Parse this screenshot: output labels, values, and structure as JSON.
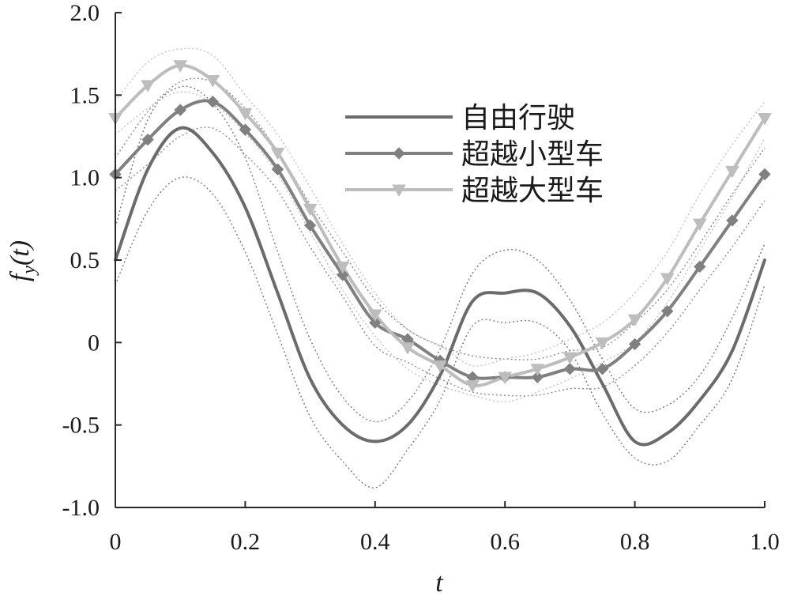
{
  "chart_data": {
    "type": "line",
    "title": "",
    "xlabel": "t",
    "ylabel": "f_y(t)",
    "ylabel_main": "f",
    "ylabel_sub": "y",
    "ylabel_arg": "(t)",
    "xlim": [
      0,
      1
    ],
    "ylim": [
      -1,
      2
    ],
    "x_ticks": [
      0,
      0.2,
      0.4,
      0.6,
      0.8,
      1.0
    ],
    "x_tick_labels": [
      "0",
      "0.2",
      "0.4",
      "0.6",
      "0.8",
      "1.0"
    ],
    "y_ticks": [
      -1,
      -0.5,
      0,
      0.5,
      1,
      1.5,
      2
    ],
    "y_tick_labels": [
      "-1.0",
      "-0.5",
      "0",
      "0.5",
      "1.0",
      "1.5",
      "2.0"
    ],
    "grid": false,
    "legend_position": "top-right",
    "x": [
      0,
      0.05,
      0.1,
      0.15,
      0.2,
      0.25,
      0.3,
      0.35,
      0.4,
      0.45,
      0.5,
      0.55,
      0.6,
      0.65,
      0.7,
      0.75,
      0.8,
      0.85,
      0.9,
      0.95,
      1.0
    ],
    "series": [
      {
        "name": "自由行驶",
        "color": "#6b6b6b",
        "marker": "none",
        "values": [
          0.5,
          1.05,
          1.3,
          1.15,
          0.82,
          0.3,
          -0.22,
          -0.5,
          -0.6,
          -0.5,
          -0.2,
          0.25,
          0.3,
          0.3,
          0.1,
          -0.25,
          -0.6,
          -0.55,
          -0.35,
          -0.05,
          0.5
        ],
        "band_upper": [
          0.7,
          1.35,
          1.55,
          1.45,
          1.12,
          0.55,
          0.02,
          -0.33,
          -0.48,
          -0.36,
          -0.04,
          0.42,
          0.56,
          0.5,
          0.26,
          -0.1,
          -0.4,
          -0.38,
          -0.2,
          0.15,
          0.6
        ],
        "band_lower": [
          0.35,
          0.8,
          1.0,
          0.9,
          0.55,
          0.05,
          -0.45,
          -0.72,
          -0.88,
          -0.65,
          -0.35,
          0.1,
          0.12,
          0.12,
          -0.05,
          -0.43,
          -0.7,
          -0.72,
          -0.5,
          -0.22,
          0.35
        ]
      },
      {
        "name": "超越小型车",
        "color": "#808080",
        "marker": "diamond",
        "values": [
          1.02,
          1.23,
          1.41,
          1.46,
          1.29,
          1.05,
          0.71,
          0.41,
          0.12,
          0.02,
          -0.11,
          -0.21,
          -0.21,
          -0.21,
          -0.16,
          -0.16,
          -0.01,
          0.19,
          0.46,
          0.74,
          1.02
        ],
        "band_upper": [
          1.12,
          1.4,
          1.58,
          1.58,
          1.42,
          1.16,
          0.84,
          0.55,
          0.26,
          0.08,
          -0.02,
          -0.08,
          -0.1,
          -0.1,
          -0.05,
          -0.03,
          0.12,
          0.32,
          0.6,
          0.9,
          1.18
        ],
        "band_lower": [
          0.92,
          1.08,
          1.25,
          1.3,
          1.14,
          0.92,
          0.58,
          0.28,
          -0.02,
          -0.12,
          -0.22,
          -0.3,
          -0.32,
          -0.32,
          -0.28,
          -0.27,
          -0.14,
          0.06,
          0.32,
          0.58,
          0.86
        ]
      },
      {
        "name": "超越大型车",
        "color": "#bdbdbd",
        "marker": "triangle-down",
        "values": [
          1.36,
          1.56,
          1.68,
          1.59,
          1.39,
          1.15,
          0.81,
          0.46,
          0.17,
          -0.03,
          -0.14,
          -0.26,
          -0.21,
          -0.16,
          -0.09,
          0.0,
          0.14,
          0.39,
          0.72,
          1.04,
          1.36
        ],
        "band_upper": [
          1.46,
          1.7,
          1.78,
          1.74,
          1.5,
          1.26,
          0.94,
          0.6,
          0.3,
          0.08,
          -0.02,
          -0.14,
          -0.1,
          -0.06,
          0.02,
          0.12,
          0.3,
          0.55,
          0.9,
          1.2,
          1.46
        ],
        "band_lower": [
          1.26,
          1.42,
          1.52,
          1.45,
          1.27,
          1.02,
          0.67,
          0.32,
          0.04,
          -0.16,
          -0.26,
          -0.32,
          -0.36,
          -0.3,
          -0.22,
          -0.12,
          0.0,
          0.24,
          0.56,
          0.88,
          1.24
        ]
      }
    ]
  }
}
